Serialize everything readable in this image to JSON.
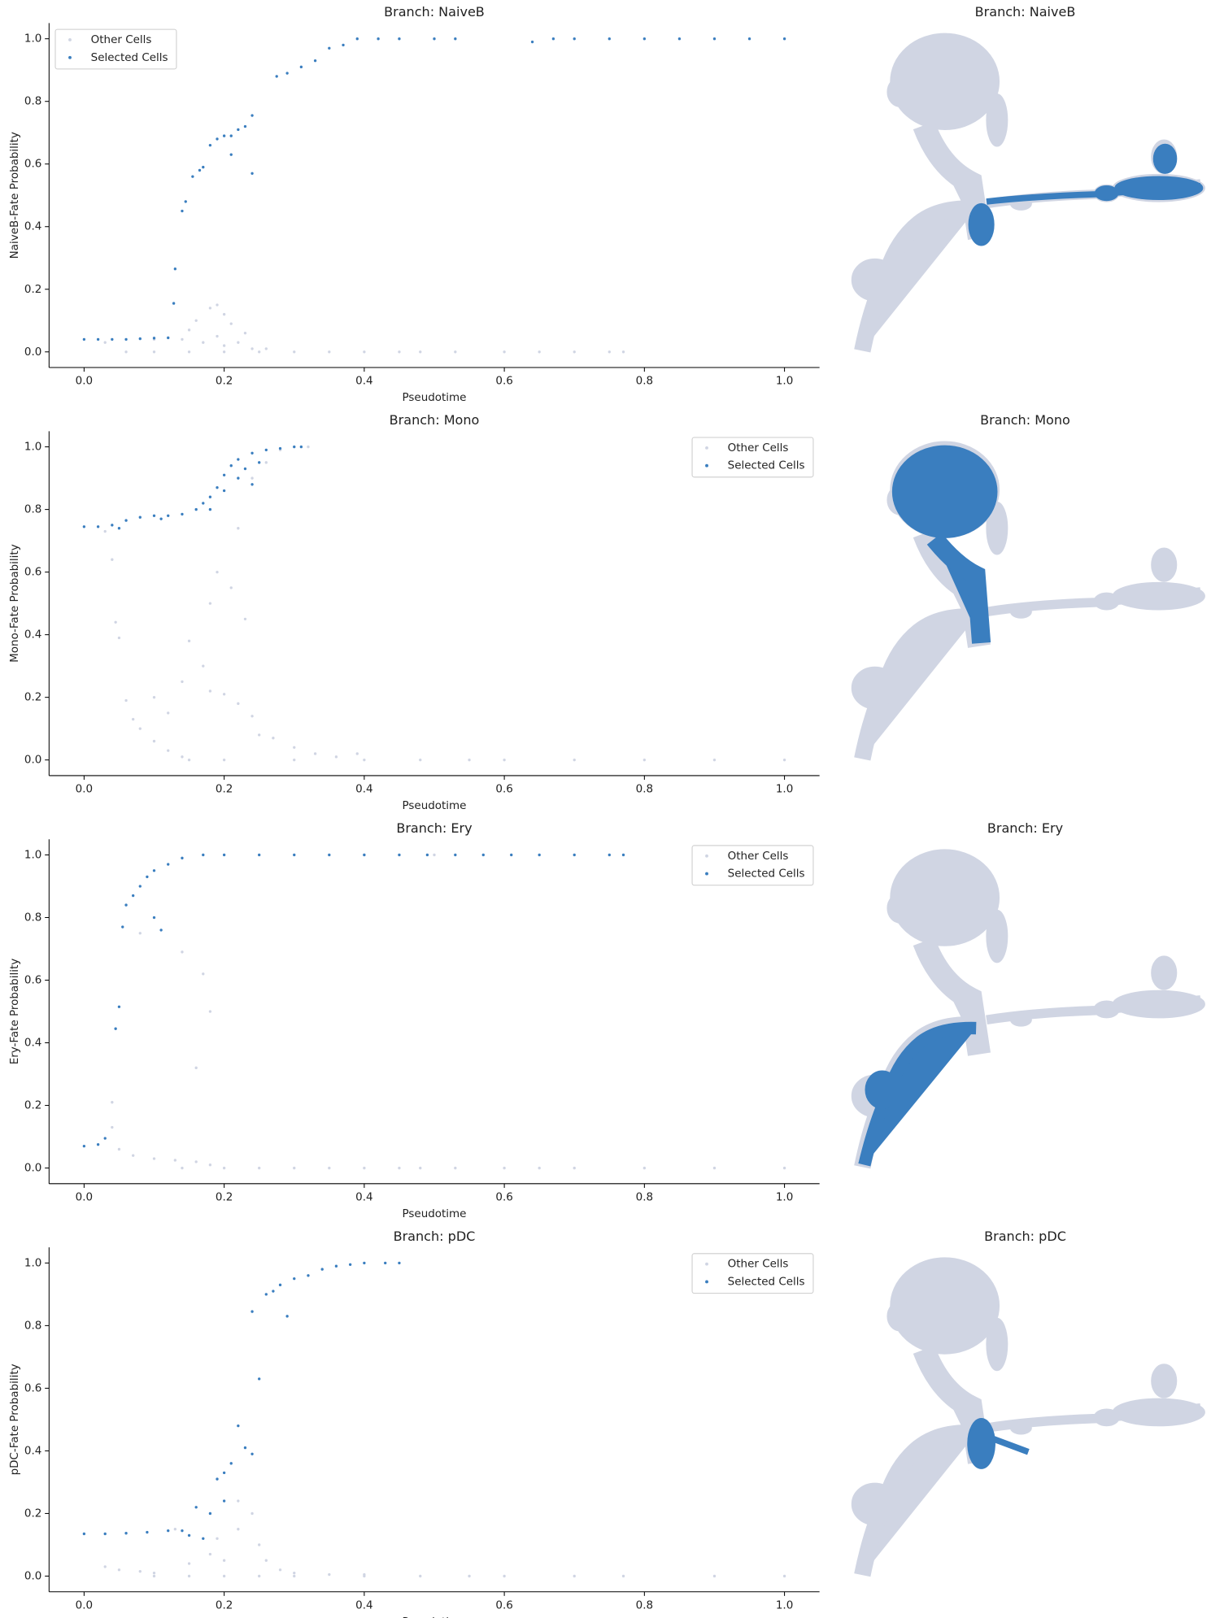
{
  "chart_data": [
    {
      "type": "scatter",
      "title": "Branch: NaiveB",
      "xlabel": "Pseudotime",
      "ylabel": "NaiveB-Fate Probability",
      "xlim": [
        -0.05,
        1.05
      ],
      "ylim": [
        -0.05,
        1.05
      ],
      "xticks": [
        {
          "value": 0,
          "label": "0.0"
        },
        {
          "value": 0.2,
          "label": "0.2"
        },
        {
          "value": 0.4,
          "label": "0.4"
        },
        {
          "value": 0.6,
          "label": "0.6"
        },
        {
          "value": 0.8,
          "label": "0.8"
        },
        {
          "value": 1,
          "label": "1.0"
        }
      ],
      "yticks": [
        {
          "value": 0,
          "label": "0.0"
        },
        {
          "value": 0.2,
          "label": "0.2"
        },
        {
          "value": 0.4,
          "label": "0.4"
        },
        {
          "value": 0.6,
          "label": "0.6"
        },
        {
          "value": 0.8,
          "label": "0.8"
        },
        {
          "value": 1,
          "label": "1.0"
        }
      ],
      "legend": "upper left",
      "series": [
        {
          "name": "Other Cells",
          "color": "#d0d5e3",
          "x": [
            0.06,
            0.1,
            0.15,
            0.2,
            0.25,
            0.3,
            0.35,
            0.4,
            0.45,
            0.48,
            0.53,
            0.6,
            0.65,
            0.7,
            0.75,
            0.77,
            0.03,
            0.1,
            0.14,
            0.17,
            0.19,
            0.2,
            0.22,
            0.24,
            0.16,
            0.18,
            0.19,
            0.2,
            0.21,
            0.23,
            0.15,
            0.26
          ],
          "values": [
            0,
            0,
            0,
            0,
            0,
            0,
            0,
            0,
            0,
            0,
            0,
            0,
            0,
            0,
            0,
            0,
            0.03,
            0.04,
            0.04,
            0.03,
            0.05,
            0.02,
            0.03,
            0.01,
            0.1,
            0.14,
            0.15,
            0.12,
            0.09,
            0.06,
            0.07,
            0.01
          ]
        },
        {
          "name": "Selected Cells",
          "color": "#3a7ebf",
          "x": [
            0,
            0.02,
            0.04,
            0.06,
            0.08,
            0.1,
            0.12,
            0.128,
            0.13,
            0.14,
            0.145,
            0.155,
            0.165,
            0.17,
            0.18,
            0.19,
            0.2,
            0.21,
            0.21,
            0.22,
            0.23,
            0.24,
            0.24,
            0.275,
            0.29,
            0.31,
            0.33,
            0.35,
            0.37,
            0.39,
            0.42,
            0.45,
            0.5,
            0.53,
            0.64,
            0.67,
            0.7,
            0.75,
            0.8,
            0.85,
            0.9,
            0.95,
            1.0
          ],
          "values": [
            0.04,
            0.04,
            0.04,
            0.04,
            0.042,
            0.044,
            0.045,
            0.155,
            0.265,
            0.45,
            0.48,
            0.56,
            0.58,
            0.59,
            0.66,
            0.68,
            0.69,
            0.69,
            0.63,
            0.71,
            0.72,
            0.755,
            0.57,
            0.88,
            0.89,
            0.91,
            0.93,
            0.97,
            0.98,
            1.0,
            1.0,
            1.0,
            1.0,
            1.0,
            0.99,
            1.0,
            1.0,
            1.0,
            1.0,
            1.0,
            1.0,
            1.0,
            1.0
          ]
        }
      ]
    },
    {
      "type": "embedding",
      "title": "Branch: NaiveB"
    },
    {
      "type": "scatter",
      "title": "Branch: Mono",
      "xlabel": "Pseudotime",
      "ylabel": "Mono-Fate Probability",
      "xlim": [
        -0.05,
        1.05
      ],
      "ylim": [
        -0.05,
        1.05
      ],
      "xticks": [
        {
          "value": 0,
          "label": "0.0"
        },
        {
          "value": 0.2,
          "label": "0.2"
        },
        {
          "value": 0.4,
          "label": "0.4"
        },
        {
          "value": 0.6,
          "label": "0.6"
        },
        {
          "value": 0.8,
          "label": "0.8"
        },
        {
          "value": 1,
          "label": "1.0"
        }
      ],
      "yticks": [
        {
          "value": 0,
          "label": "0.0"
        },
        {
          "value": 0.2,
          "label": "0.2"
        },
        {
          "value": 0.4,
          "label": "0.4"
        },
        {
          "value": 0.6,
          "label": "0.6"
        },
        {
          "value": 0.8,
          "label": "0.8"
        },
        {
          "value": 1,
          "label": "1.0"
        }
      ],
      "legend": "upper right",
      "series": [
        {
          "name": "Other Cells",
          "color": "#d0d5e3",
          "x": [
            0.03,
            0.04,
            0.045,
            0.05,
            0.06,
            0.07,
            0.08,
            0.1,
            0.12,
            0.14,
            0.1,
            0.12,
            0.14,
            0.15,
            0.17,
            0.18,
            0.2,
            0.22,
            0.24,
            0.25,
            0.27,
            0.3,
            0.33,
            0.36,
            0.39,
            0.18,
            0.19,
            0.21,
            0.22,
            0.23,
            0.24,
            0.26,
            0.28,
            0.32,
            0.15,
            0.2,
            0.3,
            0.4,
            0.48,
            0.55,
            0.6,
            0.7,
            0.8,
            0.9,
            1.0
          ],
          "values": [
            0.73,
            0.64,
            0.44,
            0.39,
            0.19,
            0.13,
            0.1,
            0.06,
            0.03,
            0.01,
            0.2,
            0.15,
            0.25,
            0.38,
            0.3,
            0.22,
            0.21,
            0.18,
            0.14,
            0.08,
            0.07,
            0.04,
            0.02,
            0.01,
            0.02,
            0.5,
            0.6,
            0.55,
            0.74,
            0.45,
            0.9,
            0.95,
            0.99,
            1.0,
            0,
            0,
            0,
            0,
            0,
            0,
            0,
            0,
            0,
            0,
            0
          ]
        },
        {
          "name": "Selected Cells",
          "color": "#3a7ebf",
          "x": [
            0,
            0.02,
            0.04,
            0.06,
            0.08,
            0.1,
            0.12,
            0.14,
            0.16,
            0.18,
            0.19,
            0.2,
            0.21,
            0.22,
            0.24,
            0.26,
            0.28,
            0.3,
            0.31,
            0.17,
            0.2,
            0.22,
            0.23,
            0.25,
            0.24,
            0.05,
            0.11,
            0.18
          ],
          "values": [
            0.745,
            0.745,
            0.75,
            0.765,
            0.775,
            0.78,
            0.78,
            0.785,
            0.8,
            0.84,
            0.87,
            0.91,
            0.94,
            0.96,
            0.98,
            0.99,
            0.995,
            1.0,
            1.0,
            0.82,
            0.86,
            0.9,
            0.93,
            0.95,
            0.88,
            0.74,
            0.77,
            0.8
          ]
        }
      ]
    },
    {
      "type": "embedding",
      "title": "Branch: Mono"
    },
    {
      "type": "scatter",
      "title": "Branch: Ery",
      "xlabel": "Pseudotime",
      "ylabel": "Ery-Fate Probability",
      "xlim": [
        -0.05,
        1.05
      ],
      "ylim": [
        -0.05,
        1.05
      ],
      "xticks": [
        {
          "value": 0,
          "label": "0.0"
        },
        {
          "value": 0.2,
          "label": "0.2"
        },
        {
          "value": 0.4,
          "label": "0.4"
        },
        {
          "value": 0.6,
          "label": "0.6"
        },
        {
          "value": 0.8,
          "label": "0.8"
        },
        {
          "value": 1,
          "label": "1.0"
        }
      ],
      "yticks": [
        {
          "value": 0,
          "label": "0.0"
        },
        {
          "value": 0.2,
          "label": "0.2"
        },
        {
          "value": 0.4,
          "label": "0.4"
        },
        {
          "value": 0.6,
          "label": "0.6"
        },
        {
          "value": 0.8,
          "label": "0.8"
        },
        {
          "value": 1,
          "label": "1.0"
        }
      ],
      "legend": "upper right",
      "series": [
        {
          "name": "Other Cells",
          "color": "#d0d5e3",
          "x": [
            0.04,
            0.04,
            0.05,
            0.07,
            0.1,
            0.13,
            0.16,
            0.18,
            0.08,
            0.14,
            0.16,
            0.17,
            0.18,
            0.14,
            0.2,
            0.25,
            0.3,
            0.35,
            0.4,
            0.45,
            0.48,
            0.53,
            0.6,
            0.65,
            0.7,
            0.8,
            0.9,
            1.0,
            0.5,
            0.4
          ],
          "values": [
            0.13,
            0.21,
            0.06,
            0.04,
            0.03,
            0.025,
            0.02,
            0.01,
            0.75,
            0.69,
            0.32,
            0.62,
            0.5,
            0,
            0,
            0,
            0,
            0,
            0,
            0,
            0,
            0,
            0,
            0,
            0,
            0,
            0,
            0,
            1.0,
            1.0
          ]
        },
        {
          "name": "Selected Cells",
          "color": "#3a7ebf",
          "x": [
            0,
            0.02,
            0.03,
            0.045,
            0.05,
            0.055,
            0.06,
            0.07,
            0.08,
            0.09,
            0.1,
            0.1,
            0.11,
            0.12,
            0.14,
            0.17,
            0.2,
            0.25,
            0.3,
            0.35,
            0.4,
            0.45,
            0.49,
            0.53,
            0.57,
            0.61,
            0.65,
            0.7,
            0.75,
            0.77
          ],
          "values": [
            0.07,
            0.075,
            0.095,
            0.445,
            0.515,
            0.77,
            0.84,
            0.87,
            0.9,
            0.93,
            0.95,
            0.8,
            0.76,
            0.97,
            0.99,
            1.0,
            1.0,
            1.0,
            1.0,
            1.0,
            1.0,
            1.0,
            1.0,
            1.0,
            1.0,
            1.0,
            1.0,
            1.0,
            1.0,
            1.0
          ]
        }
      ]
    },
    {
      "type": "embedding",
      "title": "Branch: Ery"
    },
    {
      "type": "scatter",
      "title": "Branch: pDC",
      "xlabel": "Pseudotime",
      "ylabel": "pDC-Fate Probability",
      "xlim": [
        -0.05,
        1.05
      ],
      "ylim": [
        -0.05,
        1.05
      ],
      "xticks": [
        {
          "value": 0,
          "label": "0.0"
        },
        {
          "value": 0.2,
          "label": "0.2"
        },
        {
          "value": 0.4,
          "label": "0.4"
        },
        {
          "value": 0.6,
          "label": "0.6"
        },
        {
          "value": 0.8,
          "label": "0.8"
        },
        {
          "value": 1,
          "label": "1.0"
        }
      ],
      "yticks": [
        {
          "value": 0,
          "label": "0.0"
        },
        {
          "value": 0.2,
          "label": "0.2"
        },
        {
          "value": 0.4,
          "label": "0.4"
        },
        {
          "value": 0.6,
          "label": "0.6"
        },
        {
          "value": 0.8,
          "label": "0.8"
        },
        {
          "value": 1,
          "label": "1.0"
        }
      ],
      "legend": "upper right",
      "series": [
        {
          "name": "Other Cells",
          "color": "#d0d5e3",
          "x": [
            0.03,
            0.05,
            0.08,
            0.1,
            0.15,
            0.18,
            0.2,
            0.22,
            0.22,
            0.24,
            0.25,
            0.26,
            0.28,
            0.3,
            0.35,
            0.4,
            0.1,
            0.15,
            0.2,
            0.25,
            0.3,
            0.4,
            0.48,
            0.55,
            0.6,
            0.7,
            0.77,
            0.9,
            1.0,
            0.13,
            0.19
          ],
          "values": [
            0.03,
            0.02,
            0.015,
            0.01,
            0.04,
            0.07,
            0.05,
            0.15,
            0.24,
            0.2,
            0.1,
            0.05,
            0.02,
            0.01,
            0.005,
            0.005,
            0,
            0,
            0,
            0,
            0,
            0,
            0,
            0,
            0,
            0,
            0,
            0,
            0,
            0.15,
            0.12
          ]
        },
        {
          "name": "Selected Cells",
          "color": "#3a7ebf",
          "x": [
            0,
            0.03,
            0.06,
            0.09,
            0.12,
            0.14,
            0.15,
            0.16,
            0.17,
            0.18,
            0.19,
            0.2,
            0.21,
            0.22,
            0.24,
            0.24,
            0.25,
            0.26,
            0.27,
            0.28,
            0.29,
            0.3,
            0.32,
            0.34,
            0.36,
            0.38,
            0.4,
            0.43,
            0.45,
            0.23,
            0.2
          ],
          "values": [
            0.135,
            0.135,
            0.137,
            0.14,
            0.145,
            0.145,
            0.13,
            0.22,
            0.12,
            0.2,
            0.31,
            0.33,
            0.36,
            0.48,
            0.39,
            0.845,
            0.63,
            0.9,
            0.91,
            0.93,
            0.83,
            0.95,
            0.96,
            0.98,
            0.99,
            0.995,
            1.0,
            1.0,
            1.0,
            0.41,
            0.24
          ]
        }
      ]
    },
    {
      "type": "embedding",
      "title": "Branch: pDC"
    }
  ]
}
